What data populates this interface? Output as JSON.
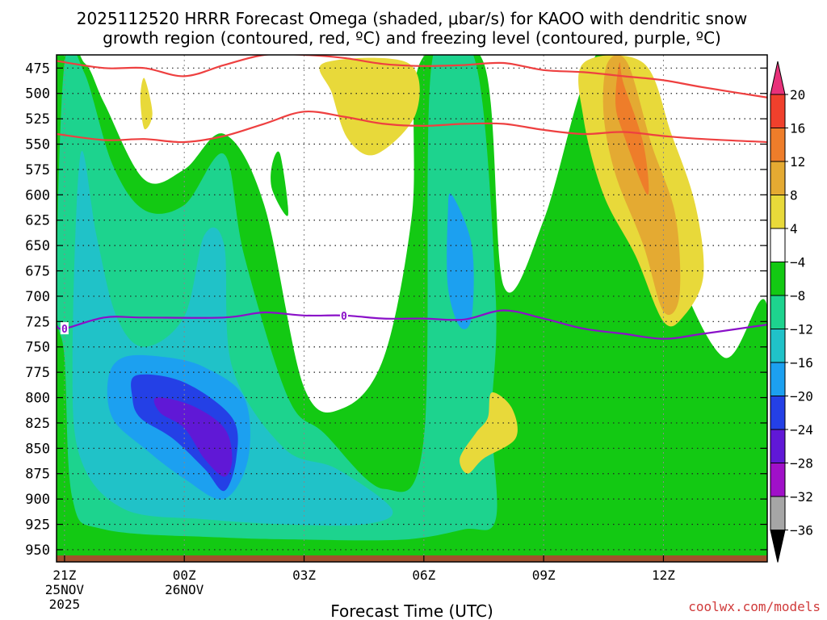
{
  "chart_data": {
    "type": "heatmap",
    "title_line1": "2025112520 HRRR Forecast Omega (shaded, μbar/s) for KAOO with dendritic snow",
    "title_line2": "growth region (contoured, red, ºC) and freezing level (contoured, purple, ºC)",
    "xlabel": "Forecast Time (UTC)",
    "credit": "coolwx.com/models",
    "x_hours": [
      -3.2,
      14.6
    ],
    "y_levels": [
      950,
      925,
      900,
      875,
      850,
      825,
      800,
      775,
      750,
      725,
      700,
      675,
      650,
      625,
      600,
      575,
      550,
      525,
      500,
      475
    ],
    "y_range": [
      962,
      462
    ],
    "x_ticks": [
      {
        "hour": -3,
        "lines": [
          "21Z",
          "25NOV",
          "2025"
        ]
      },
      {
        "hour": 0,
        "lines": [
          "00Z",
          "26NOV"
        ]
      },
      {
        "hour": 3,
        "lines": [
          "03Z"
        ]
      },
      {
        "hour": 6,
        "lines": [
          "06Z"
        ]
      },
      {
        "hour": 9,
        "lines": [
          "09Z"
        ]
      },
      {
        "hour": 12,
        "lines": [
          "12Z"
        ]
      }
    ],
    "colorbar": {
      "labels": [
        "20",
        "16",
        "12",
        "8",
        "4",
        "−4",
        "−8",
        "−12",
        "−16",
        "−20",
        "−24",
        "−28",
        "−32",
        "−36"
      ],
      "colors": [
        "#e8317a",
        "#f0402c",
        "#ee7d2a",
        "#e4aa32",
        "#e8d93a",
        "#ffffff",
        "#13c913",
        "#1dd38e",
        "#20c2c8",
        "#1ca0f0",
        "#2440e6",
        "#6018d6",
        "#a010c8",
        "#a6a6a6",
        "#000000"
      ]
    },
    "freezing_level": {
      "label": "0",
      "points": [
        [
          -3.2,
          729
        ],
        [
          -3.0,
          732
        ],
        [
          -2.0,
          721
        ],
        [
          -1.0,
          721
        ],
        [
          1.0,
          721
        ],
        [
          2.0,
          716
        ],
        [
          3.0,
          719
        ],
        [
          4.0,
          719
        ],
        [
          5.0,
          722
        ],
        [
          6.0,
          722
        ],
        [
          7.0,
          723
        ],
        [
          8.0,
          714
        ],
        [
          9.0,
          722
        ],
        [
          10.0,
          732
        ],
        [
          11.0,
          737
        ],
        [
          12.0,
          742
        ],
        [
          13.0,
          737
        ],
        [
          14.6,
          728
        ]
      ]
    },
    "dgz_upper": [
      [
        -3.2,
        468
      ],
      [
        -2.0,
        475
      ],
      [
        -1.0,
        475
      ],
      [
        0.0,
        483
      ],
      [
        1.0,
        472
      ],
      [
        2.0,
        462
      ],
      [
        3.0,
        462
      ],
      [
        4.0,
        465
      ],
      [
        5.0,
        471
      ],
      [
        6.0,
        473
      ],
      [
        7.0,
        472
      ],
      [
        8.0,
        470
      ],
      [
        9.0,
        477
      ],
      [
        10.0,
        479
      ],
      [
        11.0,
        483
      ],
      [
        12.0,
        487
      ],
      [
        13.0,
        494
      ],
      [
        14.6,
        504
      ]
    ],
    "dgz_lower": [
      [
        -3.2,
        540
      ],
      [
        -2.0,
        546
      ],
      [
        -1.0,
        545
      ],
      [
        0.0,
        548
      ],
      [
        1.0,
        542
      ],
      [
        2.0,
        530
      ],
      [
        3.0,
        518
      ],
      [
        4.0,
        523
      ],
      [
        5.0,
        530
      ],
      [
        6.0,
        532
      ],
      [
        7.0,
        530
      ],
      [
        8.0,
        530
      ],
      [
        9.0,
        536
      ],
      [
        10.0,
        540
      ],
      [
        11.0,
        538
      ],
      [
        12.0,
        542
      ],
      [
        13.0,
        545
      ],
      [
        14.6,
        548
      ]
    ],
    "shaded": [
      {
        "level": -8,
        "color": "#13c913",
        "points": [
          [
            -3.2,
            470
          ],
          [
            -2.5,
            470
          ],
          [
            -2.0,
            510
          ],
          [
            -1.0,
            585
          ],
          [
            0.0,
            575
          ],
          [
            1.0,
            540
          ],
          [
            2.0,
            610
          ],
          [
            3.0,
            790
          ],
          [
            4.0,
            810
          ],
          [
            5.0,
            760
          ],
          [
            5.7,
            620
          ],
          [
            5.9,
            470
          ],
          [
            7.5,
            470
          ],
          [
            8.0,
            690
          ],
          [
            9.0,
            625
          ],
          [
            10.0,
            490
          ],
          [
            10.7,
            470
          ],
          [
            12.0,
            640
          ],
          [
            13.5,
            760
          ],
          [
            14.6,
            710
          ],
          [
            14.6,
            962
          ],
          [
            -3.2,
            962
          ]
        ]
      },
      {
        "level": -12,
        "color": "#1dd38e",
        "points": [
          [
            -3.0,
            470
          ],
          [
            -2.5,
            480
          ],
          [
            -1.8,
            570
          ],
          [
            -1.0,
            615
          ],
          [
            0.0,
            610
          ],
          [
            1.0,
            560
          ],
          [
            1.5,
            660
          ],
          [
            2.6,
            800
          ],
          [
            3.5,
            835
          ],
          [
            5.0,
            890
          ],
          [
            6.0,
            840
          ],
          [
            6.2,
            470
          ],
          [
            7.3,
            470
          ],
          [
            7.8,
            700
          ],
          [
            7.7,
            820
          ],
          [
            7.8,
            920
          ],
          [
            7.0,
            930
          ],
          [
            5.5,
            940
          ],
          [
            3.0,
            940
          ],
          [
            1.0,
            938
          ],
          [
            -2.0,
            930
          ],
          [
            -2.8,
            900
          ],
          [
            -3.0,
            760
          ],
          [
            -3.2,
            700
          ]
        ]
      },
      {
        "level": -16,
        "color": "#20c2c8",
        "points": [
          [
            -2.6,
            560
          ],
          [
            -2.2,
            640
          ],
          [
            -1.7,
            720
          ],
          [
            -1.0,
            750
          ],
          [
            0.0,
            720
          ],
          [
            0.5,
            640
          ],
          [
            1.0,
            650
          ],
          [
            1.2,
            770
          ],
          [
            2.5,
            850
          ],
          [
            3.8,
            870
          ],
          [
            5.2,
            910
          ],
          [
            4.5,
            925
          ],
          [
            2.5,
            925
          ],
          [
            0.5,
            920
          ],
          [
            -1.5,
            910
          ],
          [
            -2.6,
            860
          ],
          [
            -2.8,
            760
          ]
        ]
      },
      {
        "level": -20,
        "color": "#1ca0f0",
        "points": [
          [
            -1.5,
            760
          ],
          [
            -0.5,
            760
          ],
          [
            0.5,
            770
          ],
          [
            1.5,
            800
          ],
          [
            1.6,
            860
          ],
          [
            1.0,
            900
          ],
          [
            0.0,
            880
          ],
          [
            -1.0,
            850
          ],
          [
            -1.8,
            820
          ],
          [
            -1.9,
            780
          ]
        ]
      },
      {
        "level": -24,
        "color": "#2440e6",
        "points": [
          [
            -1.2,
            778
          ],
          [
            0.0,
            785
          ],
          [
            1.2,
            820
          ],
          [
            1.3,
            860
          ],
          [
            1.0,
            892
          ],
          [
            0.5,
            870
          ],
          [
            -0.3,
            840
          ],
          [
            -1.1,
            820
          ],
          [
            -1.3,
            800
          ]
        ]
      },
      {
        "level": -28,
        "color": "#6018d6",
        "points": [
          [
            -0.7,
            800
          ],
          [
            0.2,
            808
          ],
          [
            1.0,
            830
          ],
          [
            1.2,
            860
          ],
          [
            1.0,
            878
          ],
          [
            0.5,
            860
          ],
          [
            0.0,
            830
          ],
          [
            -0.6,
            815
          ]
        ]
      },
      {
        "level": -16,
        "color": "#1ca0f0",
        "points": [
          [
            6.7,
            600
          ],
          [
            7.2,
            650
          ],
          [
            7.2,
            720
          ],
          [
            6.9,
            730
          ],
          [
            6.6,
            690
          ],
          [
            6.6,
            620
          ]
        ]
      },
      {
        "level": 4,
        "color": "#e8d93a",
        "points": [
          [
            10.0,
            470
          ],
          [
            11.5,
            470
          ],
          [
            12.2,
            540
          ],
          [
            12.8,
            610
          ],
          [
            13.0,
            680
          ],
          [
            12.5,
            720
          ],
          [
            12.0,
            725
          ],
          [
            11.3,
            660
          ],
          [
            10.5,
            600
          ],
          [
            10.0,
            525
          ]
        ]
      },
      {
        "level": 8,
        "color": "#e4aa32",
        "points": [
          [
            10.6,
            470
          ],
          [
            11.1,
            470
          ],
          [
            11.7,
            550
          ],
          [
            12.3,
            620
          ],
          [
            12.4,
            700
          ],
          [
            12.0,
            715
          ],
          [
            11.5,
            650
          ],
          [
            10.8,
            580
          ],
          [
            10.5,
            520
          ]
        ]
      },
      {
        "level": 12,
        "color": "#ee7d2a",
        "points": [
          [
            10.9,
            470
          ],
          [
            11.0,
            490
          ],
          [
            11.5,
            550
          ],
          [
            11.6,
            600
          ],
          [
            11.0,
            540
          ],
          [
            10.8,
            510
          ]
        ]
      },
      {
        "level": 4,
        "color": "#e8d93a",
        "points": [
          [
            3.5,
            470
          ],
          [
            5.6,
            470
          ],
          [
            5.8,
            520
          ],
          [
            4.8,
            560
          ],
          [
            4.1,
            545
          ],
          [
            3.7,
            500
          ]
        ]
      },
      {
        "level": 4,
        "color": "#e8d93a",
        "points": [
          [
            7.7,
            795
          ],
          [
            8.2,
            810
          ],
          [
            8.3,
            840
          ],
          [
            7.5,
            860
          ],
          [
            7.1,
            875
          ],
          [
            6.9,
            860
          ],
          [
            7.3,
            835
          ],
          [
            7.6,
            820
          ]
        ]
      },
      {
        "level": -8,
        "color": "#13c913",
        "points": [
          [
            2.4,
            560
          ],
          [
            2.6,
            620
          ],
          [
            2.2,
            595
          ],
          [
            2.2,
            570
          ]
        ]
      },
      {
        "level": 4,
        "color": "#e8d93a",
        "points": [
          [
            -1.0,
            485
          ],
          [
            -0.8,
            520
          ],
          [
            -1.0,
            535
          ],
          [
            -1.1,
            505
          ]
        ]
      }
    ]
  }
}
